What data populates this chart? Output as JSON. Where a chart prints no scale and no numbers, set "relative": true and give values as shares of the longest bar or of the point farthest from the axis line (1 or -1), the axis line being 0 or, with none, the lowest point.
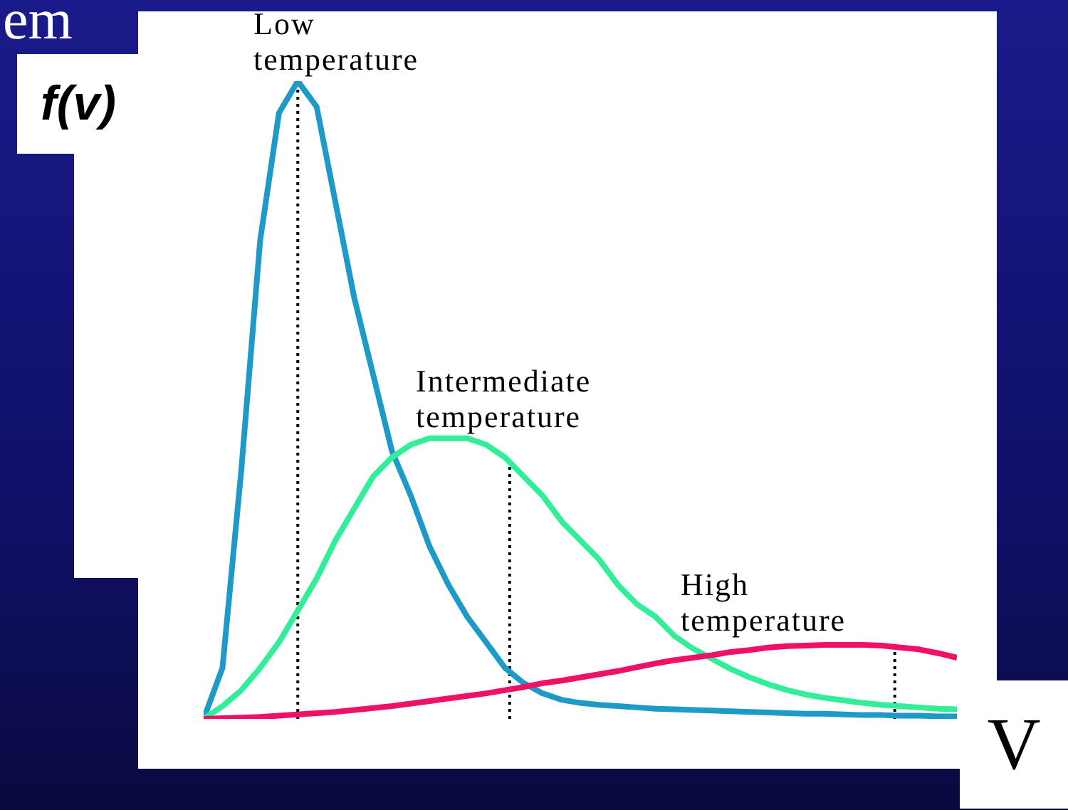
{
  "chart_data": {
    "type": "line",
    "relative": true,
    "ylabel": "f(v)",
    "xlabel": "V",
    "annotations": [
      "em",
      "Low temperature",
      "Intermediate temperature",
      "High temperature"
    ],
    "categories": [
      null,
      null,
      null,
      null,
      null,
      null,
      null,
      null,
      null,
      null,
      null,
      null,
      null,
      null,
      null,
      null,
      null,
      null,
      null,
      null,
      null,
      null,
      null,
      null,
      null,
      null,
      null,
      null,
      null,
      null,
      null,
      null,
      null,
      null,
      null,
      null,
      null,
      null,
      null,
      null,
      null
    ],
    "series": [
      {
        "color": "#1e9ac8",
        "values": [
          0,
          0.08,
          0.39,
          0.75,
          0.95,
          1,
          0.96,
          0.81,
          0.66,
          0.54,
          0.42,
          0.35,
          0.27,
          0.21,
          0.16,
          0.12,
          0.08,
          0.056,
          0.04,
          0.03,
          0.025,
          0.022,
          0.02,
          0.018,
          0.016,
          0.015,
          0.014,
          0.013,
          0.012,
          0.011,
          0.01,
          0.009,
          0.008,
          0.008,
          0.007,
          0.006,
          0.006,
          0.005,
          0.005,
          0.004,
          0.004
        ]
      },
      {
        "color": "#33ee99",
        "values": [
          0,
          0.02,
          0.045,
          0.08,
          0.12,
          0.17,
          0.22,
          0.28,
          0.33,
          0.38,
          0.41,
          0.43,
          0.44,
          0.44,
          0.44,
          0.43,
          0.41,
          0.38,
          0.35,
          0.31,
          0.28,
          0.25,
          0.21,
          0.18,
          0.16,
          0.13,
          0.11,
          0.094,
          0.078,
          0.065,
          0.054,
          0.045,
          0.038,
          0.033,
          0.029,
          0.025,
          0.022,
          0.02,
          0.018,
          0.016,
          0.015
        ]
      },
      {
        "color": "#ee1166",
        "values": [
          0,
          0.001,
          0.002,
          0.003,
          0.005,
          0.007,
          0.009,
          0.011,
          0.014,
          0.017,
          0.02,
          0.024,
          0.028,
          0.032,
          0.036,
          0.04,
          0.045,
          0.05,
          0.056,
          0.06,
          0.065,
          0.07,
          0.075,
          0.081,
          0.087,
          0.092,
          0.096,
          0.1,
          0.105,
          0.108,
          0.112,
          0.114,
          0.115,
          0.116,
          0.116,
          0.116,
          0.115,
          0.112,
          0.109,
          0.103,
          0.096
        ]
      }
    ],
    "legend": false,
    "grid": false
  }
}
